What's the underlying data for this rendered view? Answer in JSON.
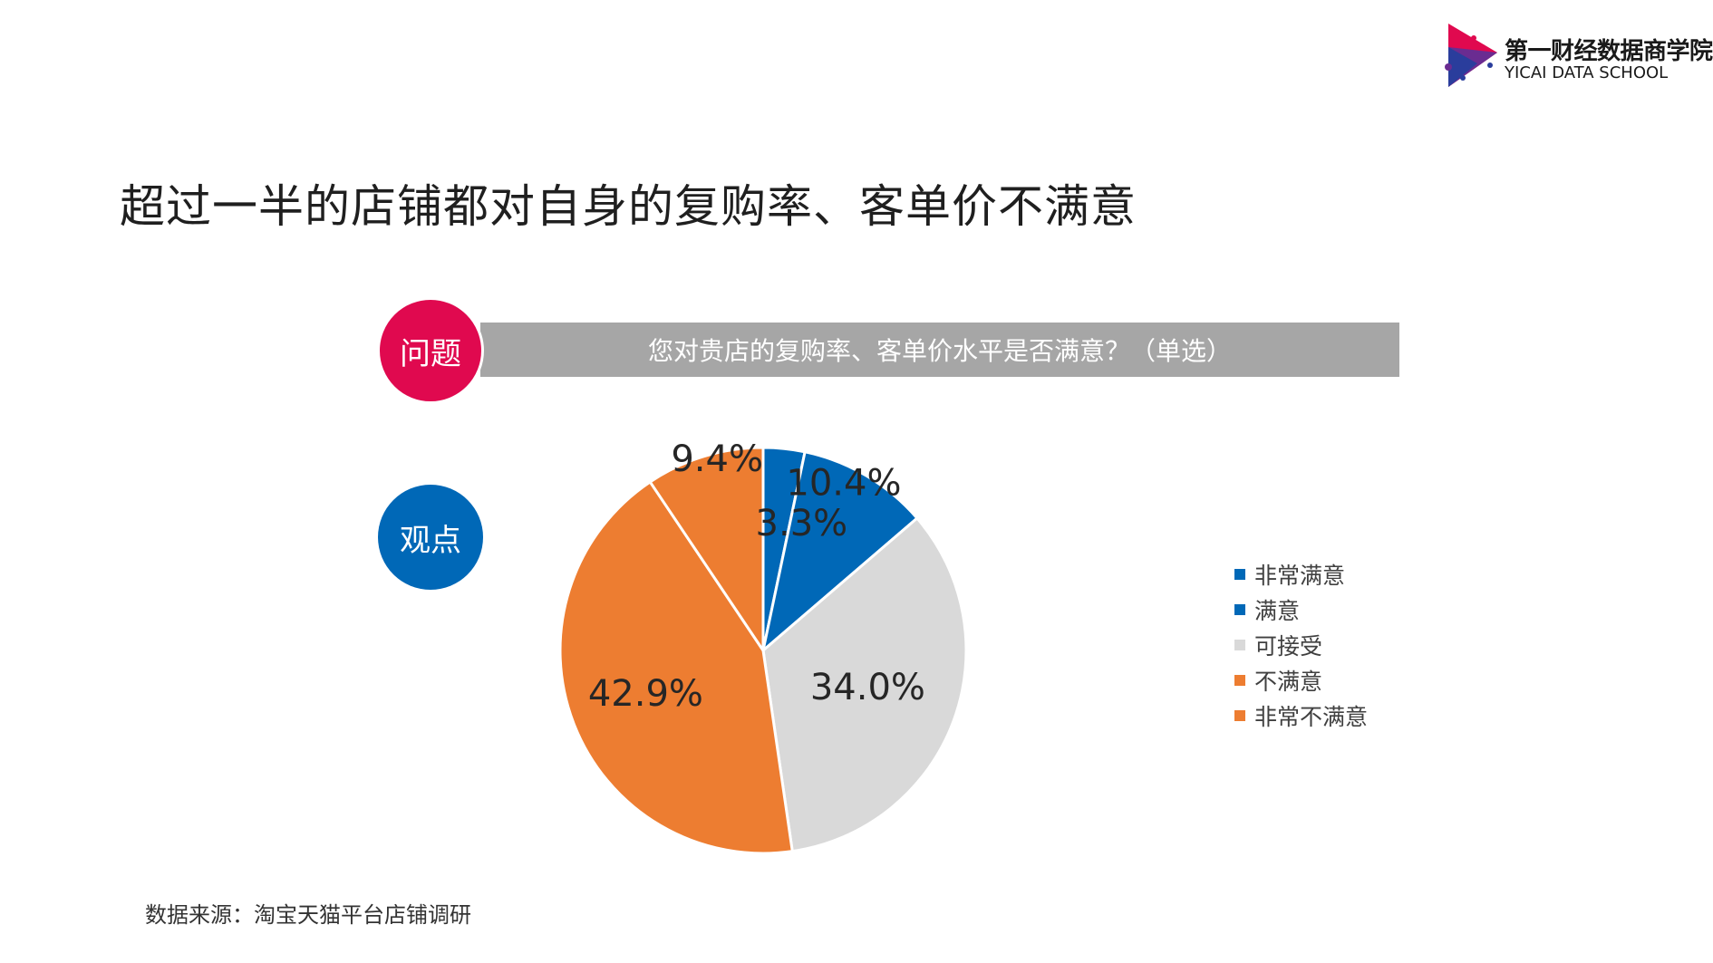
{
  "logo": {
    "name_cn": "第一财经数据商学院",
    "name_en": "YICAI DATA SCHOOL"
  },
  "title": "超过一半的店铺都对自身的复购率、客单价不满意",
  "question": {
    "badge": "问题",
    "text": "您对贵店的复购率、客单价水平是否满意？（单选）"
  },
  "viewpoint": {
    "badge": "观点"
  },
  "chart_data": {
    "type": "pie",
    "categories": [
      "非常满意",
      "满意",
      "可接受",
      "不满意",
      "非常不满意"
    ],
    "values": [
      3.3,
      10.4,
      34.0,
      42.9,
      9.4
    ],
    "labels": [
      "3.3%",
      "10.4%",
      "34.0%",
      "42.9%",
      "9.4%"
    ],
    "colors": [
      "#0068b7",
      "#0068b7",
      "#d9d9d9",
      "#ed7d31",
      "#ed7d31"
    ],
    "start_angle_deg": 0,
    "direction": "clockwise",
    "legend_position": "right"
  },
  "colors": {
    "question_badge": "#e0094f",
    "viewpoint_badge": "#0068b7",
    "question_bar": "#a6a6a6"
  },
  "source": "数据来源：淘宝天猫平台店铺调研"
}
